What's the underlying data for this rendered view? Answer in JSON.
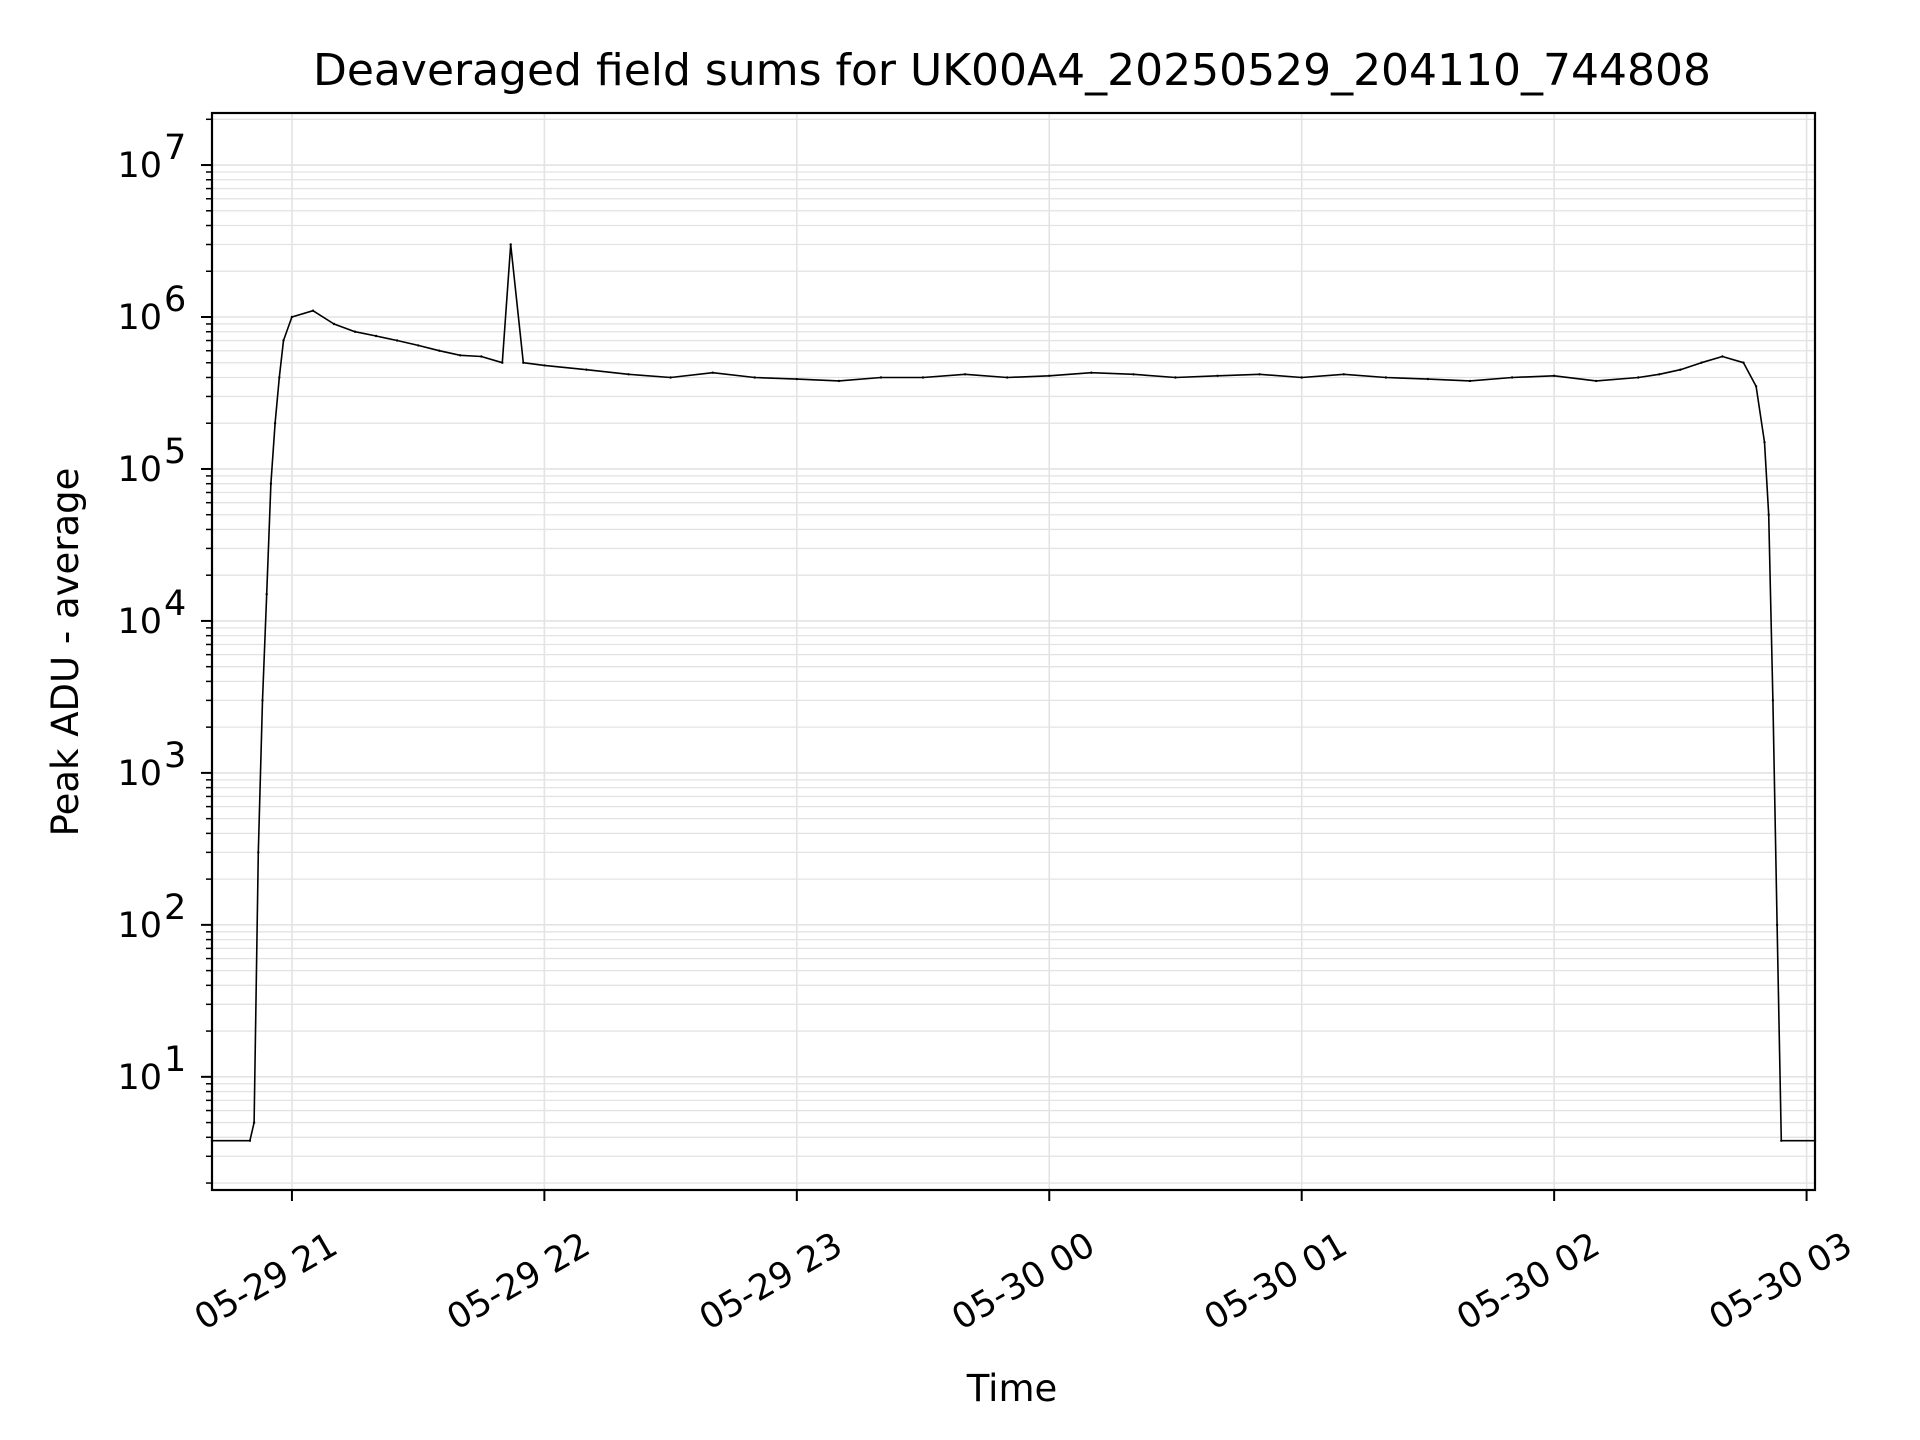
{
  "chart_data": {
    "type": "line",
    "title": "Deaveraged field sums for UK00A4_20250529_204110_744808",
    "xlabel": "Time",
    "ylabel": "Peak ADU - average",
    "y_scale": "log",
    "ylim": [
      1.8,
      22000000
    ],
    "xlim": [
      "2025-05-29 20:41",
      "2025-05-30 03:02"
    ],
    "x_ticks": [
      "05-29 21",
      "05-29 22",
      "05-29 23",
      "05-30 00",
      "05-30 01",
      "05-30 02",
      "05-30 03"
    ],
    "y_ticks": [
      {
        "base": "10",
        "exp": "1",
        "value": 10
      },
      {
        "base": "10",
        "exp": "2",
        "value": 100
      },
      {
        "base": "10",
        "exp": "3",
        "value": 1000
      },
      {
        "base": "10",
        "exp": "4",
        "value": 10000
      },
      {
        "base": "10",
        "exp": "5",
        "value": 100000
      },
      {
        "base": "10",
        "exp": "6",
        "value": 1000000
      },
      {
        "base": "10",
        "exp": "7",
        "value": 10000000
      }
    ],
    "grid": true,
    "line_color": "#000000",
    "grid_color": "#e3e3e3",
    "series": [
      {
        "x": [
          "2025-05-29 20:41",
          "2025-05-29 20:50",
          "2025-05-29 20:51",
          "2025-05-29 20:52",
          "2025-05-29 20:53",
          "2025-05-29 20:54",
          "2025-05-29 20:55",
          "2025-05-29 20:56",
          "2025-05-29 20:57",
          "2025-05-29 20:58",
          "2025-05-29 21:00",
          "2025-05-29 21:05",
          "2025-05-29 21:10",
          "2025-05-29 21:15",
          "2025-05-29 21:20",
          "2025-05-29 21:25",
          "2025-05-29 21:30",
          "2025-05-29 21:35",
          "2025-05-29 21:40",
          "2025-05-29 21:45",
          "2025-05-29 21:50",
          "2025-05-29 21:52",
          "2025-05-29 21:55",
          "2025-05-29 22:00",
          "2025-05-29 22:10",
          "2025-05-29 22:20",
          "2025-05-29 22:30",
          "2025-05-29 22:40",
          "2025-05-29 22:50",
          "2025-05-29 23:00",
          "2025-05-29 23:10",
          "2025-05-29 23:20",
          "2025-05-29 23:30",
          "2025-05-29 23:40",
          "2025-05-29 23:50",
          "2025-05-30 00:00",
          "2025-05-30 00:10",
          "2025-05-30 00:20",
          "2025-05-30 00:30",
          "2025-05-30 00:40",
          "2025-05-30 00:50",
          "2025-05-30 01:00",
          "2025-05-30 01:10",
          "2025-05-30 01:20",
          "2025-05-30 01:30",
          "2025-05-30 01:40",
          "2025-05-30 01:50",
          "2025-05-30 02:00",
          "2025-05-30 02:10",
          "2025-05-30 02:20",
          "2025-05-30 02:25",
          "2025-05-30 02:30",
          "2025-05-30 02:35",
          "2025-05-30 02:40",
          "2025-05-30 02:45",
          "2025-05-30 02:48",
          "2025-05-30 02:50",
          "2025-05-30 02:51",
          "2025-05-30 02:52",
          "2025-05-30 02:53",
          "2025-05-30 02:54",
          "2025-05-30 03:02"
        ],
        "y": [
          3.8,
          3.8,
          5,
          300,
          3000,
          15000,
          80000,
          200000,
          400000,
          700000,
          1000000,
          1100000,
          900000,
          800000,
          750000,
          700000,
          650000,
          600000,
          560000,
          550000,
          500000,
          3000000,
          500000,
          480000,
          450000,
          420000,
          400000,
          430000,
          400000,
          390000,
          380000,
          400000,
          400000,
          420000,
          400000,
          410000,
          430000,
          420000,
          400000,
          410000,
          420000,
          400000,
          420000,
          400000,
          390000,
          380000,
          400000,
          410000,
          380000,
          400000,
          420000,
          450000,
          500000,
          550000,
          500000,
          350000,
          150000,
          50000,
          3000,
          100,
          3.8,
          3.8
        ]
      }
    ]
  }
}
